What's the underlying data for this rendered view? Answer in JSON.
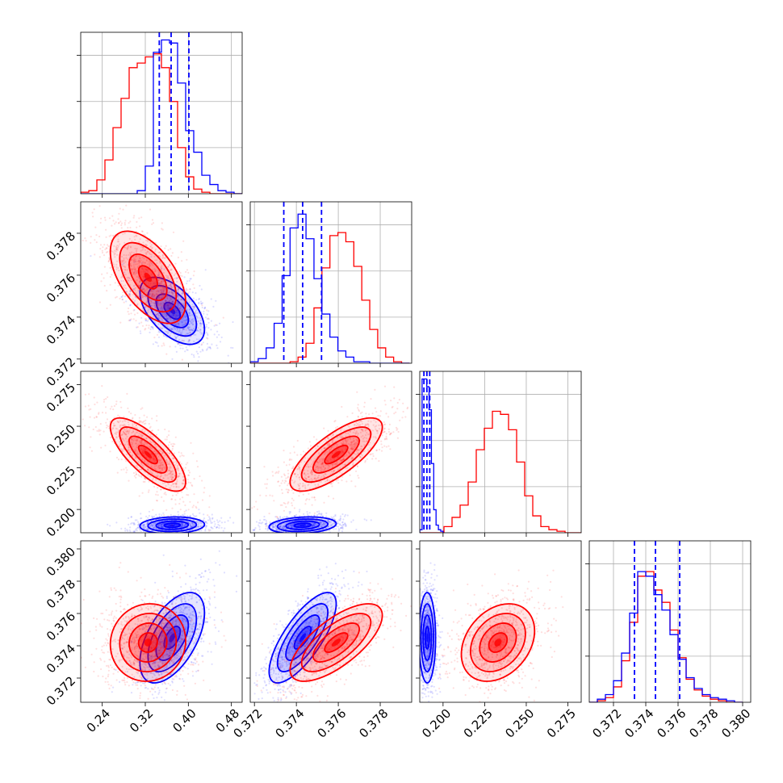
{
  "chart_data": {
    "type": "corner",
    "grid": true,
    "legend": "none",
    "colors": {
      "red": "#ff0000",
      "blue": "#0000ff"
    },
    "parameters": [
      {
        "range": [
          0.2,
          0.5
        ],
        "ticks": [
          0.24,
          0.32,
          0.4,
          0.48
        ],
        "tick_labels": [
          "0.24",
          "0.32",
          "0.40",
          "0.48"
        ]
      },
      {
        "range": [
          0.3718,
          0.3795
        ],
        "ticks": [
          0.372,
          0.374,
          0.376,
          0.378
        ],
        "tick_labels": [
          "0.372",
          "0.374",
          "0.376",
          "0.378"
        ]
      },
      {
        "range": [
          0.186,
          0.283
        ],
        "ticks": [
          0.2,
          0.225,
          0.25,
          0.275
        ],
        "tick_labels": [
          "0.200",
          "0.225",
          "0.250",
          "0.275"
        ]
      },
      {
        "range": [
          0.3705,
          0.3805
        ],
        "ticks": [
          0.372,
          0.374,
          0.376,
          0.378,
          0.38
        ],
        "tick_labels": [
          "0.372",
          "0.374",
          "0.376",
          "0.378",
          "0.380"
        ]
      }
    ],
    "y_tick_labels": {
      "1": [
        "0.372",
        "0.374",
        "0.376",
        "0.378"
      ],
      "2": [
        "0.200",
        "0.225",
        "0.250",
        "0.275"
      ],
      "3": [
        "0.372",
        "0.374",
        "0.376",
        "0.378",
        "0.380"
      ]
    },
    "hist_ylim": [
      0,
      1.05
    ],
    "histograms": [
      {
        "red": {
          "edges": [
            0.2,
            0.215,
            0.23,
            0.245,
            0.26,
            0.275,
            0.29,
            0.305,
            0.32,
            0.335,
            0.35,
            0.365,
            0.38,
            0.395,
            0.41,
            0.425,
            0.44,
            0.455,
            0.47,
            0.485,
            0.5
          ],
          "counts": [
            0.01,
            0.02,
            0.09,
            0.22,
            0.43,
            0.62,
            0.82,
            0.85,
            0.89,
            0.91,
            0.82,
            0.6,
            0.3,
            0.11,
            0.03,
            0.01,
            0,
            0,
            0,
            0
          ]
        },
        "blue": {
          "edges": [
            0.2,
            0.215,
            0.23,
            0.245,
            0.26,
            0.275,
            0.29,
            0.305,
            0.32,
            0.335,
            0.35,
            0.365,
            0.38,
            0.395,
            0.41,
            0.425,
            0.44,
            0.455,
            0.47,
            0.485,
            0.5
          ],
          "counts": [
            0,
            0,
            0,
            0,
            0,
            0,
            0,
            0.02,
            0.18,
            0.92,
            1.0,
            0.98,
            0.72,
            0.41,
            0.27,
            0.12,
            0.06,
            0.02,
            0.01,
            0
          ]
        },
        "quantiles": [
          0.346,
          0.368,
          0.401
        ]
      },
      {
        "red": {
          "edges": [
            0.3718,
            0.37218,
            0.37256,
            0.37294,
            0.37332,
            0.3737,
            0.37408,
            0.37446,
            0.37484,
            0.37522,
            0.3756,
            0.37598,
            0.37636,
            0.37674,
            0.37712,
            0.3775,
            0.37788,
            0.37826,
            0.37864,
            0.37902,
            0.3794
          ],
          "counts": [
            0,
            0,
            0,
            0,
            0,
            0.01,
            0.04,
            0.13,
            0.36,
            0.62,
            0.83,
            0.85,
            0.79,
            0.63,
            0.41,
            0.22,
            0.1,
            0.04,
            0.01,
            0
          ]
        },
        "blue": {
          "edges": [
            0.3718,
            0.37218,
            0.37256,
            0.37294,
            0.37332,
            0.3737,
            0.37408,
            0.37446,
            0.37484,
            0.37522,
            0.3756,
            0.37598,
            0.37636,
            0.37674,
            0.37712,
            0.3775,
            0.37788,
            0.37826,
            0.37864,
            0.37902,
            0.3794
          ],
          "counts": [
            0.01,
            0.03,
            0.1,
            0.26,
            0.57,
            0.88,
            0.97,
            0.81,
            0.55,
            0.32,
            0.17,
            0.08,
            0.04,
            0.01,
            0.01,
            0,
            0,
            0,
            0,
            0
          ]
        },
        "quantiles": [
          0.3734,
          0.3743,
          0.3752
        ]
      },
      {
        "red": {
          "edges": [
            0.186,
            0.19085,
            0.1957,
            0.20055,
            0.2054,
            0.21025,
            0.2151,
            0.21995,
            0.2248,
            0.22965,
            0.2345,
            0.23935,
            0.2442,
            0.24905,
            0.2539,
            0.25875,
            0.2636,
            0.26845,
            0.2733,
            0.27815,
            0.283
          ],
          "counts": [
            0,
            0,
            0,
            0.04,
            0.1,
            0.18,
            0.33,
            0.54,
            0.68,
            0.79,
            0.77,
            0.67,
            0.46,
            0.24,
            0.11,
            0.04,
            0.02,
            0.01,
            0,
            0
          ]
        },
        "blue": {
          "edges": [
            0.186,
            0.1874,
            0.1888,
            0.1902,
            0.1916,
            0.193,
            0.1944,
            0.1958,
            0.1972,
            0.1986,
            0.2
          ],
          "counts": [
            0.02,
            1.0,
            1.0,
            0.95,
            0.8,
            0.45,
            0.15,
            0.05,
            0.02,
            0.01
          ]
        },
        "quantiles": [
          0.1885,
          0.1903,
          0.192
        ]
      },
      {
        "red": {
          "edges": [
            0.3705,
            0.371,
            0.3715,
            0.372,
            0.3725,
            0.373,
            0.3735,
            0.374,
            0.3745,
            0.375,
            0.3755,
            0.376,
            0.3765,
            0.377,
            0.3775,
            0.378,
            0.3785,
            0.379,
            0.3795,
            0.38
          ],
          "counts": [
            0,
            0.01,
            0.03,
            0.1,
            0.27,
            0.52,
            0.82,
            0.85,
            0.73,
            0.65,
            0.47,
            0.29,
            0.15,
            0.08,
            0.04,
            0.02,
            0.01,
            0,
            0
          ]
        },
        "blue": {
          "edges": [
            0.3705,
            0.371,
            0.3715,
            0.372,
            0.3725,
            0.373,
            0.3735,
            0.374,
            0.3745,
            0.375,
            0.3755,
            0.376,
            0.3765,
            0.377,
            0.3775,
            0.378,
            0.3785,
            0.379,
            0.3795,
            0.38
          ],
          "counts": [
            0,
            0.02,
            0.05,
            0.14,
            0.32,
            0.58,
            0.85,
            0.82,
            0.7,
            0.6,
            0.44,
            0.28,
            0.16,
            0.09,
            0.05,
            0.03,
            0.02,
            0.01,
            0
          ]
        },
        "quantiles": [
          0.3733,
          0.3746,
          0.3761
        ]
      }
    ],
    "posteriors": {
      "red": {
        "mean": [
          0.325,
          0.3759,
          0.233,
          0.3742
        ],
        "std": [
          0.035,
          0.0011,
          0.011,
          0.0012
        ]
      },
      "blue": {
        "mean": [
          0.37,
          0.3743,
          0.1905,
          0.3745
        ],
        "std": [
          0.03,
          0.0008,
          0.0025,
          0.0014
        ]
      }
    },
    "correlations": {
      "red": {
        "1-0": -0.55,
        "2-0": -0.75,
        "2-1": 0.75,
        "3-0": 0.05,
        "3-1": 0.7,
        "3-2": 0.3
      },
      "blue": {
        "1-0": -0.55,
        "2-0": 0.1,
        "2-1": 0.2,
        "3-0": 0.55,
        "3-1": 0.75,
        "3-2": 0.0
      }
    },
    "contour_levels_sigma": [
      0.5,
      1.0,
      1.5,
      2.0
    ]
  }
}
